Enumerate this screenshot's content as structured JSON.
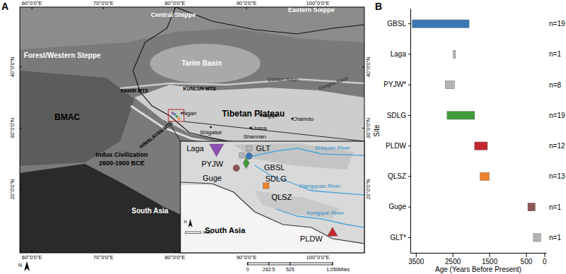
{
  "chart_data": {
    "type": "range_bar",
    "orientation": "horizontal",
    "panel_label": "B",
    "x_label": "Age (Years Before Present)",
    "y_label": "Site",
    "categories": [
      "GBSL",
      "Laga",
      "PYJW*",
      "SDLG",
      "PLDW",
      "QLSZ",
      "Guge",
      "GLT*"
    ],
    "values": [
      [
        3600,
        2050
      ],
      [
        2480,
        2420
      ],
      [
        2700,
        2450
      ],
      [
        2650,
        1900
      ],
      [
        1900,
        1550
      ],
      [
        1750,
        1500
      ],
      [
        450,
        250
      ],
      [
        300,
        100
      ]
    ],
    "colors": [
      "#3a78b5",
      "#b4b4b4",
      "#b4b4b4",
      "#3e9b3a",
      "#c1272d",
      "#f0812a",
      "#8c5652",
      "#b4b4b4"
    ],
    "n_labels": [
      "n=19",
      "n=1",
      "n=8",
      "n=19",
      "n=12",
      "n=13",
      "n=1",
      "n=1"
    ],
    "xlim": [
      3650,
      -50
    ],
    "xticks": [
      3500,
      2500,
      1500,
      500,
      0
    ],
    "grid": false
  },
  "map": {
    "panel_label": "A",
    "lonlim": [
      58.3,
      106.5
    ],
    "latlim": [
      9.6,
      49.8
    ],
    "lon_ticks": [
      {
        "value": 60,
        "label": "60°0'0\"E"
      },
      {
        "value": 70,
        "label": "70°0'0\"E"
      },
      {
        "value": 80,
        "label": "80°0'0\"E"
      },
      {
        "value": 90,
        "label": "90°0'0\"E"
      },
      {
        "value": 100,
        "label": "100°0'0\"E"
      }
    ],
    "lat_ticks": [
      {
        "value": 20,
        "label": "20°0'0\"N"
      },
      {
        "value": 30,
        "label": "30°0'0\"N"
      },
      {
        "value": 40,
        "label": "40°0'0\"N"
      }
    ],
    "labels": [
      "Central Steppe",
      "Eastern Steppe",
      "Forest/Western Steppe",
      "Tarim Basin",
      "PAMIR MTS",
      "KUNLUN MTS",
      "Qaidam Basin",
      "Gonghe Basin",
      "Tibetan Plateau",
      "BMAC",
      "Ngari",
      "Nagqu",
      "Chamdo",
      "Shigatse",
      "Lhasa",
      "Shannan",
      "HIMALAYAN MTS",
      "Indus Civilization",
      "2600-1900 BCE",
      "South Asia"
    ],
    "inset_labels": [
      "Laga",
      "GLT",
      "PYJW",
      "Guge",
      "GBSL",
      "SDLG",
      "Shiquan River",
      "Xiangquan River",
      "QLSZ",
      "Kongque River",
      "South Asia",
      "PLDW"
    ],
    "scale_bar": {
      "ticks": [
        {
          "value": 0,
          "label": "0"
        },
        {
          "value": 262.5,
          "label": "262.5"
        },
        {
          "value": 525,
          "label": "525"
        },
        {
          "value": 1050,
          "label": "1,050"
        }
      ],
      "unit": "Miles"
    },
    "inset_scale_unit": "Miles",
    "north_label": "N"
  }
}
